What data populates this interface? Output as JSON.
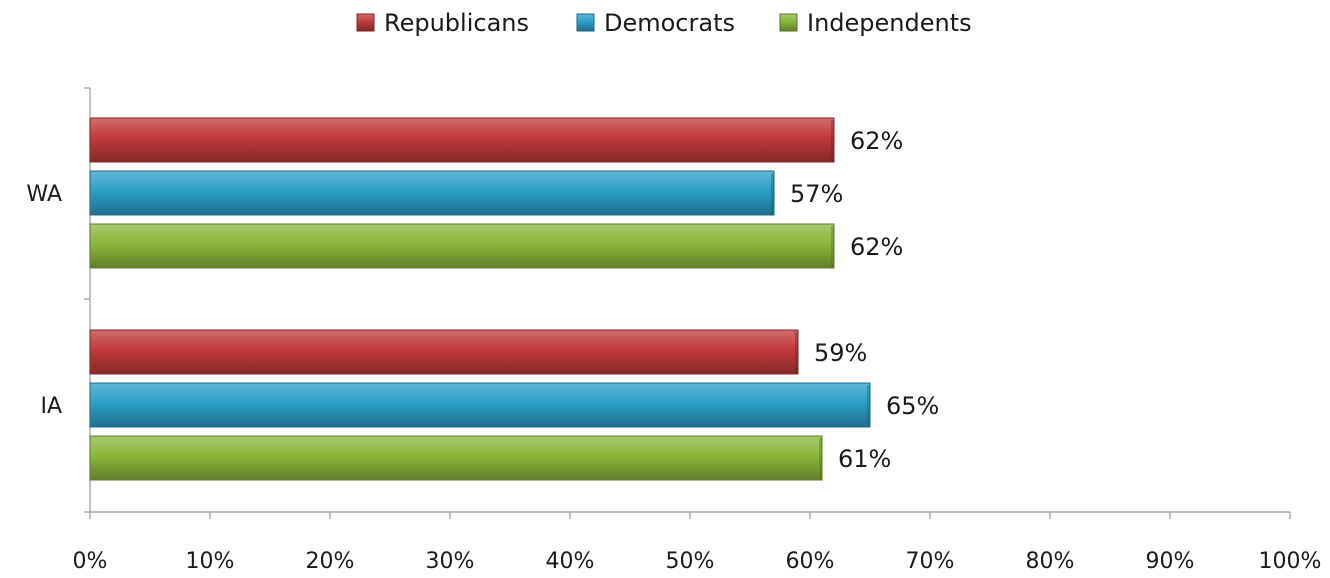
{
  "chart_data": {
    "type": "bar",
    "orientation": "horizontal",
    "categories": [
      "WA",
      "IA"
    ],
    "series": [
      {
        "name": "Republicans",
        "color": "#c0393b",
        "values": [
          62,
          59
        ],
        "labels": [
          "62%",
          "59%"
        ]
      },
      {
        "name": "Democrats",
        "color": "#2b9fc6",
        "values": [
          57,
          65
        ],
        "labels": [
          "57%",
          "65%"
        ]
      },
      {
        "name": "Independents",
        "color": "#8ab63b",
        "values": [
          62,
          61
        ],
        "labels": [
          "62%",
          "61%"
        ]
      }
    ],
    "xlim": [
      0,
      100
    ],
    "xticks": [
      0,
      10,
      20,
      30,
      40,
      50,
      60,
      70,
      80,
      90,
      100
    ],
    "xtick_labels": [
      "0%",
      "10%",
      "20%",
      "30%",
      "40%",
      "50%",
      "60%",
      "70%",
      "80%",
      "90%",
      "100%"
    ],
    "legend_position": "top-center",
    "grid": false
  }
}
